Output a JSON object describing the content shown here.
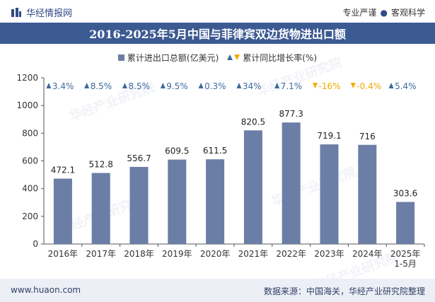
{
  "header": {
    "brand_name": "华经情报网",
    "slogan_left": "专业严谨",
    "slogan_right": "客观科学"
  },
  "footer": {
    "url": "www.huaon.com",
    "source": "数据来源：中国海关，华经产业研究院整理"
  },
  "watermark_text": "华经产业研究院",
  "colors": {
    "title_bg": "#3c5a92",
    "bar": "#6b7ea5",
    "growth_up": "#3d6a9e",
    "growth_down": "#f2a900",
    "footer_bg": "#eceff5"
  },
  "chart_data": {
    "type": "bar",
    "title": "2016-2025年5月中国与菲律宾双边货物进出口额",
    "legend": {
      "series_bar": "累计进出口总额(亿美元)",
      "series_growth": "累计同比增长率(%)",
      "placement": "top-center"
    },
    "categories": [
      "2016年",
      "2017年",
      "2018年",
      "2019年",
      "2020年",
      "2021年",
      "2022年",
      "2023年",
      "2024年",
      "2025年\n1-5月"
    ],
    "series": [
      {
        "name": "累计进出口总额(亿美元)",
        "values": [
          472.1,
          512.8,
          556.7,
          609.5,
          611.5,
          820.5,
          877.3,
          719.1,
          716,
          303.6
        ],
        "labels": [
          "472.1",
          "512.8",
          "556.7",
          "609.5",
          "611.5",
          "820.5",
          "877.3",
          "719.1",
          "716",
          "303.6"
        ]
      },
      {
        "name": "累计同比增长率(%)",
        "values": [
          3.4,
          8.5,
          8.5,
          9.5,
          0.3,
          34,
          7.1,
          -16,
          -0.4,
          5.4
        ],
        "labels": [
          "3.4%",
          "8.5%",
          "8.5%",
          "9.5%",
          "0.3%",
          "34%",
          "7.1%",
          "-16%",
          "-0.4%",
          "5.4%"
        ]
      }
    ],
    "yticks": [
      "0",
      "200",
      "400",
      "600",
      "800",
      "1000",
      "1200"
    ],
    "ylim": [
      0,
      1200
    ],
    "grid": false
  }
}
